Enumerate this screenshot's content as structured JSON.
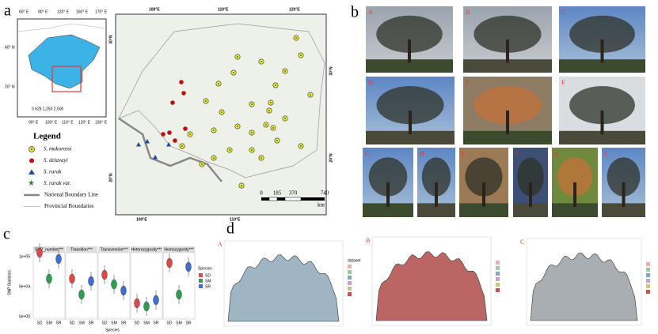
{
  "panel_a": {
    "label": "a",
    "inset": {
      "top_ticks": [
        "60° E",
        "90° E",
        "120° E",
        "150° E",
        "170° E"
      ],
      "bottom_ticks": [
        "90° E",
        "100° E",
        "110° E",
        "120° E",
        "130° E"
      ],
      "left_ticks": [
        "40° N",
        "20° N"
      ],
      "scale": "0  625 1,250     2,500"
    },
    "legend": {
      "title": "Legend",
      "items": [
        "S. mukorossi",
        "S. delavayi",
        "S. rarak",
        "S. rarak var.",
        "National Boundary Line",
        "Provincial Boundaries"
      ]
    },
    "map": {
      "top_ticks": [
        "100°E",
        "110°E",
        "120°E"
      ],
      "bottom_ticks": [
        "100°E",
        "110°E"
      ],
      "left_ticks": [
        "30°N",
        "20°N"
      ],
      "right_ticks": [
        "30°N",
        "20°N"
      ],
      "scale_ticks": [
        "0",
        "185",
        "370",
        "740"
      ],
      "scale_unit": "km"
    }
  },
  "panel_b": {
    "label": "b",
    "photos": [
      "A",
      "B",
      "C",
      "D",
      "E",
      "F",
      "G",
      "H",
      "I",
      "J",
      "K",
      "L"
    ]
  },
  "panel_c": {
    "label": "c",
    "facets": [
      "SNP_number***",
      "Transition***",
      "Transversion***",
      "Heterozygosity***",
      "Homozygosity***"
    ],
    "y_title": "SNP Statistics",
    "x_title": "Species",
    "y_ticks": [
      "1e+05",
      "5e+04",
      "0e+00"
    ],
    "species": [
      "SD",
      "SM",
      "SR"
    ],
    "legend_title": "Species"
  },
  "panel_d": {
    "label": "d",
    "plots": [
      "A",
      "B",
      "C"
    ],
    "legend_title": "dataset"
  }
}
